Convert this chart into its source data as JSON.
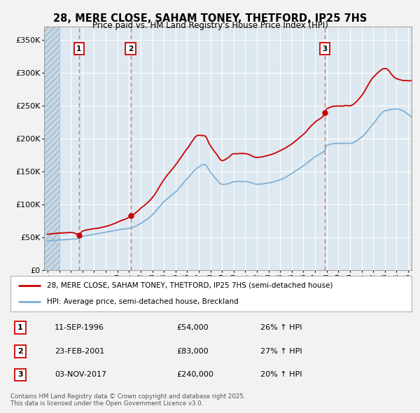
{
  "title": "28, MERE CLOSE, SAHAM TONEY, THETFORD, IP25 7HS",
  "subtitle": "Price paid vs. HM Land Registry's House Price Index (HPI)",
  "background_color": "#f2f2f2",
  "plot_bg_color": "#dde8f0",
  "grid_color": "#ffffff",
  "sale_line_color": "#cc0000",
  "hpi_line_color": "#7aaed6",
  "sale_marker_color": "#cc0000",
  "vline_color": "#e07070",
  "purchases": [
    {
      "label": "1",
      "date_x": 1996.7,
      "price": 54000,
      "hpi_pct": 26
    },
    {
      "label": "2",
      "date_x": 2001.14,
      "price": 83000,
      "hpi_pct": 27
    },
    {
      "label": "3",
      "date_x": 2017.84,
      "price": 240000,
      "hpi_pct": 20
    }
  ],
  "purchase_dates_str": [
    "11-SEP-1996",
    "23-FEB-2001",
    "03-NOV-2017"
  ],
  "purchase_prices_str": [
    "£54,000",
    "£83,000",
    "£240,000"
  ],
  "purchase_hpi_str": [
    "26% ↑ HPI",
    "27% ↑ HPI",
    "20% ↑ HPI"
  ],
  "ylim": [
    0,
    370000
  ],
  "xlim": [
    1993.7,
    2025.3
  ],
  "yticks": [
    0,
    50000,
    100000,
    150000,
    200000,
    250000,
    300000,
    350000
  ],
  "ytick_labels": [
    "£0",
    "£50K",
    "£100K",
    "£150K",
    "£200K",
    "£250K",
    "£300K",
    "£350K"
  ],
  "legend_entries": [
    "28, MERE CLOSE, SAHAM TONEY, THETFORD, IP25 7HS (semi-detached house)",
    "HPI: Average price, semi-detached house, Breckland"
  ],
  "footer": "Contains HM Land Registry data © Crown copyright and database right 2025.\nThis data is licensed under the Open Government Licence v3.0.",
  "hatch_end_x": 1995.0,
  "hpi_data_x": [
    1994.0,
    1995.0,
    1996.0,
    1996.7,
    1997.0,
    1998.0,
    1999.0,
    2000.0,
    2001.14,
    2002.0,
    2003.0,
    2004.0,
    2005.0,
    2006.0,
    2007.0,
    2007.5,
    2008.0,
    2008.5,
    2009.0,
    2009.5,
    2010.0,
    2011.0,
    2012.0,
    2013.0,
    2014.0,
    2015.0,
    2016.0,
    2017.0,
    2017.84,
    2018.0,
    2019.0,
    2020.0,
    2021.0,
    2022.0,
    2023.0,
    2024.0,
    2025.0
  ],
  "hpi_data_y": [
    45000,
    46500,
    48000,
    49000,
    52000,
    55000,
    58000,
    62000,
    65000,
    72000,
    85000,
    105000,
    120000,
    140000,
    158000,
    162000,
    150000,
    140000,
    132000,
    133000,
    136000,
    137000,
    133000,
    135000,
    140000,
    150000,
    162000,
    175000,
    185000,
    192000,
    195000,
    195000,
    205000,
    225000,
    245000,
    248000,
    240000
  ],
  "sale_data_x": [
    1994.0,
    1995.0,
    1996.0,
    1996.7,
    1997.0,
    1998.0,
    1999.0,
    2000.0,
    2001.14,
    2002.0,
    2003.0,
    2004.0,
    2005.0,
    2006.0,
    2007.0,
    2007.5,
    2008.0,
    2008.5,
    2009.0,
    2009.5,
    2010.0,
    2011.0,
    2012.0,
    2013.0,
    2014.0,
    2015.0,
    2016.0,
    2017.0,
    2017.84,
    2018.0,
    2019.0,
    2020.0,
    2021.0,
    2022.0,
    2023.0,
    2024.0,
    2025.0
  ],
  "sale_data_y": [
    55000,
    56000,
    57000,
    54000,
    59000,
    63000,
    67000,
    74000,
    83000,
    95000,
    112000,
    140000,
    162000,
    186000,
    206000,
    205000,
    190000,
    178000,
    168000,
    172000,
    178000,
    178000,
    173000,
    176000,
    184000,
    195000,
    210000,
    228000,
    240000,
    248000,
    252000,
    252000,
    267000,
    295000,
    308000,
    292000,
    288000
  ]
}
